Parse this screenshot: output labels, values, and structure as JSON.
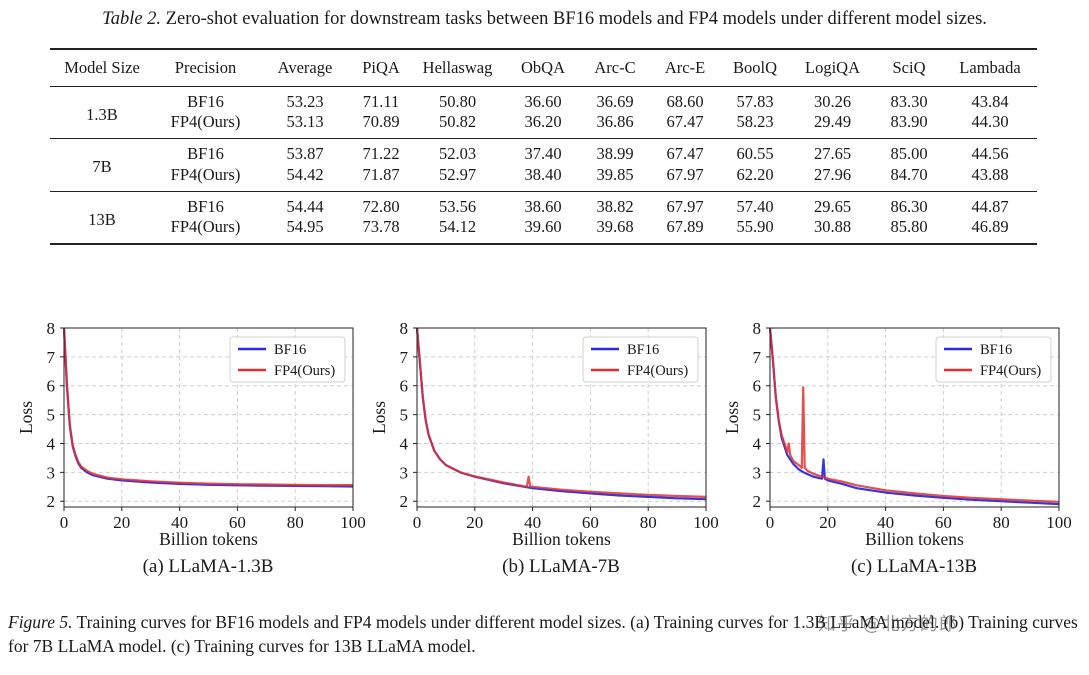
{
  "table_caption": {
    "label": "Table 2.",
    "text": "Zero-shot evaluation for downstream tasks between BF16 models and FP4 models under different model sizes."
  },
  "table": {
    "headers": [
      "Model Size",
      "Precision",
      "Average",
      "PiQA",
      "Hellaswag",
      "ObQA",
      "Arc-C",
      "Arc-E",
      "BoolQ",
      "LogiQA",
      "SciQ",
      "Lambada"
    ],
    "groups": [
      {
        "size": "1.3B",
        "rows": [
          {
            "precision": "BF16",
            "values": [
              "53.23",
              "71.11",
              "50.80",
              "36.60",
              "36.69",
              "68.60",
              "57.83",
              "30.26",
              "83.30",
              "43.84"
            ]
          },
          {
            "precision": "FP4(Ours)",
            "values": [
              "53.13",
              "70.89",
              "50.82",
              "36.20",
              "36.86",
              "67.47",
              "58.23",
              "29.49",
              "83.90",
              "44.30"
            ]
          }
        ]
      },
      {
        "size": "7B",
        "rows": [
          {
            "precision": "BF16",
            "values": [
              "53.87",
              "71.22",
              "52.03",
              "37.40",
              "38.99",
              "67.47",
              "60.55",
              "27.65",
              "85.00",
              "44.56"
            ]
          },
          {
            "precision": "FP4(Ours)",
            "values": [
              "54.42",
              "71.87",
              "52.97",
              "38.40",
              "39.85",
              "67.97",
              "62.20",
              "27.96",
              "84.70",
              "43.88"
            ]
          }
        ]
      },
      {
        "size": "13B",
        "rows": [
          {
            "precision": "BF16",
            "values": [
              "54.44",
              "72.80",
              "53.56",
              "38.60",
              "38.82",
              "67.97",
              "57.40",
              "29.65",
              "86.30",
              "44.87"
            ]
          },
          {
            "precision": "FP4(Ours)",
            "values": [
              "54.95",
              "73.78",
              "54.12",
              "39.60",
              "39.68",
              "67.89",
              "55.90",
              "30.88",
              "85.80",
              "46.89"
            ]
          }
        ]
      }
    ]
  },
  "colors": {
    "bf16": "#2a2ae0",
    "fp4": "#e03030",
    "grid": "#cfcfcf"
  },
  "chart_data": [
    {
      "type": "line",
      "subtitle": "(a) LLaMA-1.3B",
      "xlabel": "Billion tokens",
      "ylabel": "Loss",
      "xlim": [
        0,
        100
      ],
      "ylim": [
        1.8,
        8
      ],
      "xticks": [
        "0",
        "20",
        "40",
        "60",
        "80",
        "100"
      ],
      "yticks": [
        "2",
        "3",
        "4",
        "5",
        "6",
        "7",
        "8"
      ],
      "grid": true,
      "legend": "top-right",
      "series": [
        {
          "name": "BF16",
          "color_key": "bf16",
          "x": [
            0,
            1,
            2,
            3,
            4,
            5,
            6,
            8,
            10,
            15,
            20,
            30,
            40,
            50,
            60,
            70,
            80,
            90,
            100
          ],
          "y": [
            8.0,
            6.0,
            4.6,
            3.9,
            3.55,
            3.3,
            3.15,
            3.0,
            2.9,
            2.78,
            2.72,
            2.65,
            2.6,
            2.57,
            2.55,
            2.54,
            2.53,
            2.52,
            2.51
          ]
        },
        {
          "name": "FP4(Ours)",
          "color_key": "fp4",
          "x": [
            0,
            1,
            2,
            3,
            4,
            5,
            6,
            8,
            10,
            15,
            20,
            30,
            40,
            50,
            60,
            70,
            80,
            90,
            100
          ],
          "y": [
            8.0,
            6.1,
            4.65,
            3.95,
            3.6,
            3.35,
            3.2,
            3.05,
            2.95,
            2.82,
            2.76,
            2.69,
            2.64,
            2.61,
            2.59,
            2.58,
            2.57,
            2.56,
            2.56
          ]
        }
      ]
    },
    {
      "type": "line",
      "subtitle": "(b) LLaMA-7B",
      "xlabel": "Billion tokens",
      "ylabel": "Loss",
      "xlim": [
        0,
        100
      ],
      "ylim": [
        1.8,
        8
      ],
      "xticks": [
        "0",
        "20",
        "40",
        "60",
        "80",
        "100"
      ],
      "yticks": [
        "2",
        "3",
        "4",
        "5",
        "6",
        "7",
        "8"
      ],
      "grid": true,
      "legend": "top-right",
      "series": [
        {
          "name": "BF16",
          "color_key": "bf16",
          "x": [
            0,
            1,
            2,
            3,
            4,
            6,
            8,
            10,
            15,
            20,
            30,
            40,
            50,
            60,
            70,
            80,
            90,
            100
          ],
          "y": [
            8.0,
            6.8,
            5.6,
            4.8,
            4.3,
            3.75,
            3.45,
            3.25,
            3.0,
            2.85,
            2.62,
            2.45,
            2.35,
            2.27,
            2.2,
            2.15,
            2.1,
            2.07
          ]
        },
        {
          "name": "FP4(Ours)",
          "color_key": "fp4",
          "x": [
            0,
            1,
            2,
            3,
            4,
            6,
            8,
            10,
            15,
            20,
            30,
            38,
            38.6,
            39.2,
            40,
            50,
            60,
            70,
            80,
            90,
            100
          ],
          "y": [
            8.0,
            6.8,
            5.6,
            4.8,
            4.3,
            3.75,
            3.45,
            3.25,
            3.0,
            2.86,
            2.65,
            2.5,
            2.85,
            2.5,
            2.5,
            2.4,
            2.33,
            2.27,
            2.22,
            2.18,
            2.15
          ]
        }
      ]
    },
    {
      "type": "line",
      "subtitle": "(c) LLaMA-13B",
      "xlabel": "Billion tokens",
      "ylabel": "Loss",
      "xlim": [
        0,
        100
      ],
      "ylim": [
        1.8,
        8
      ],
      "xticks": [
        "0",
        "20",
        "40",
        "60",
        "80",
        "100"
      ],
      "yticks": [
        "2",
        "3",
        "4",
        "5",
        "6",
        "7",
        "8"
      ],
      "grid": true,
      "legend": "top-right",
      "series": [
        {
          "name": "BF16",
          "color_key": "bf16",
          "x": [
            0,
            1,
            2,
            3,
            4,
            6,
            8,
            10,
            12,
            15,
            17,
            18,
            18.5,
            19,
            20,
            25,
            30,
            40,
            50,
            60,
            70,
            80,
            90,
            100
          ],
          "y": [
            8.0,
            6.9,
            5.6,
            4.8,
            4.2,
            3.6,
            3.3,
            3.1,
            2.98,
            2.85,
            2.8,
            2.78,
            3.45,
            2.78,
            2.72,
            2.6,
            2.45,
            2.3,
            2.2,
            2.12,
            2.05,
            2.0,
            1.95,
            1.9
          ]
        },
        {
          "name": "FP4(Ours)",
          "color_key": "fp4",
          "x": [
            0,
            1,
            2,
            3,
            4,
            5,
            6,
            6.5,
            7,
            8,
            10,
            11,
            11.5,
            12,
            13,
            15,
            18,
            20,
            25,
            30,
            40,
            50,
            60,
            70,
            80,
            90,
            100
          ],
          "y": [
            8.0,
            6.9,
            5.6,
            4.8,
            4.3,
            4.0,
            3.7,
            4.0,
            3.6,
            3.4,
            3.25,
            3.15,
            5.95,
            3.15,
            3.05,
            2.95,
            2.85,
            2.78,
            2.68,
            2.55,
            2.38,
            2.27,
            2.18,
            2.12,
            2.07,
            2.02,
            1.98
          ]
        }
      ]
    }
  ],
  "figure_caption": {
    "label": "Figure 5.",
    "text": "Training curves for BF16 models and FP4 models under different model sizes. (a) Training curves for 1.3B LLaMA model. (b) Training curves for 7B LLaMA model. (c) Training curves for 13B LLaMA model."
  },
  "watermark": "知乎 @北方的郎"
}
